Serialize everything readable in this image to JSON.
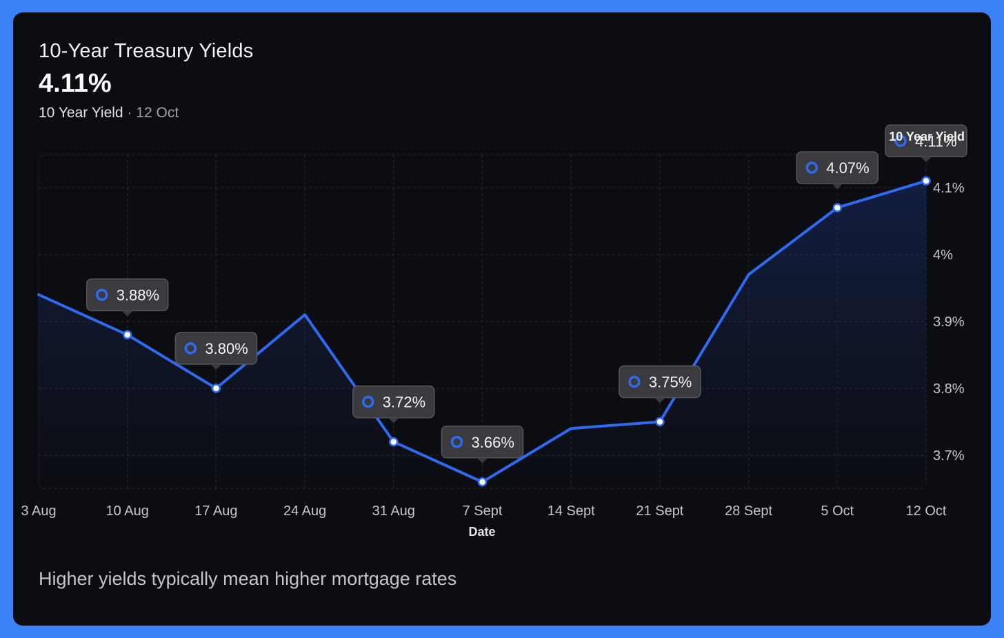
{
  "header": {
    "title": "10-Year Treasury Yields",
    "current_value": "4.11%",
    "series_label": "10 Year Yield",
    "separator": " · ",
    "date_label": "12 Oct"
  },
  "footer": {
    "note": "Higher yields typically mean higher mortgage rates"
  },
  "colors": {
    "frame": "#3b82f6",
    "card": "#0c0d12",
    "line": "#2f6bf0",
    "tooltip_bg": "#3a3a3f",
    "tooltip_border": "#55555c"
  },
  "chart_data": {
    "type": "line",
    "xlabel": "Date",
    "ylabel": "",
    "x": [
      "3 Aug",
      "10 Aug",
      "17 Aug",
      "24 Aug",
      "31 Aug",
      "7 Sept",
      "14 Sept",
      "21 Sept",
      "28 Sept",
      "5 Oct",
      "12 Oct"
    ],
    "series": [
      {
        "name": "10 Year Yield",
        "values": [
          3.94,
          3.88,
          3.8,
          3.91,
          3.72,
          3.66,
          3.74,
          3.75,
          3.97,
          4.07,
          4.11
        ]
      }
    ],
    "y_ticks": [
      "3.7%",
      "3.8%",
      "3.9%",
      "4%",
      "4.1%"
    ],
    "y_tick_values": [
      3.7,
      3.8,
      3.9,
      4.0,
      4.1
    ],
    "ylim": [
      3.66,
      4.15
    ],
    "grid": true,
    "y_axis_side": "right",
    "annotations": [
      {
        "index": 1,
        "label": "3.88%"
      },
      {
        "index": 2,
        "label": "3.80%"
      },
      {
        "index": 4,
        "label": "3.72%"
      },
      {
        "index": 5,
        "label": "3.66%"
      },
      {
        "index": 7,
        "label": "3.75%"
      },
      {
        "index": 9,
        "label": "4.07%"
      },
      {
        "index": 10,
        "label": "4.11%"
      }
    ]
  }
}
